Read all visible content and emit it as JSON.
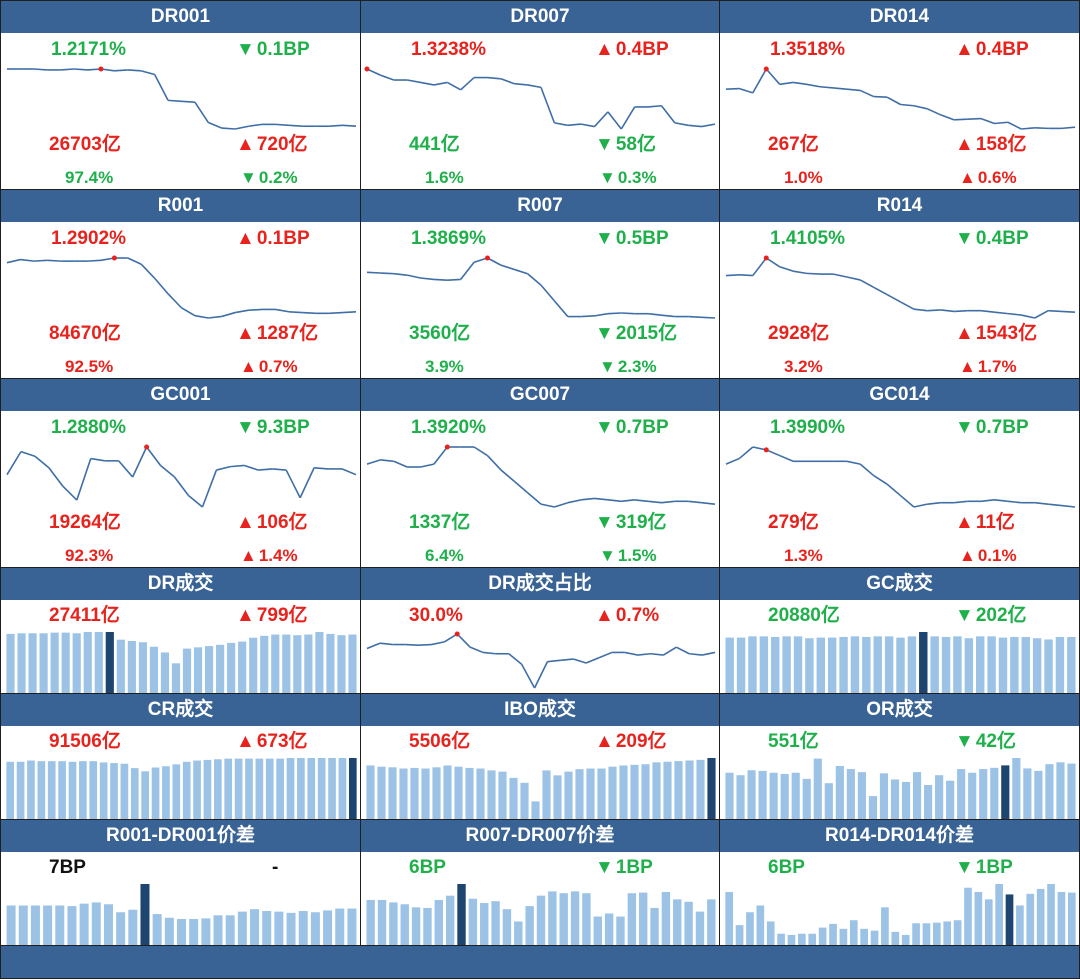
{
  "colors": {
    "up": "#e8231d",
    "down": "#1fb04b",
    "header_bg": "#3a6395",
    "line": "#3f6ea7",
    "bar": "#9cc3e6",
    "bar_hl": "#1d4570"
  },
  "panels": [
    {
      "id": "dr001",
      "title": "DR001",
      "type": "line",
      "rate": "1.2171%",
      "rate_dir": "down",
      "rate_chg": "0.1BP",
      "rate_chg_dir": "down",
      "vol": "26703亿",
      "vol_dir": "up",
      "vol_chg": "720亿",
      "vol_chg_dir": "up",
      "share": "97.4%",
      "share_dir": "down",
      "share_chg": "0.2%",
      "share_chg_dir": "down",
      "chart_data": {
        "type": "line",
        "values": [
          13,
          13,
          13,
          12.9,
          12.9,
          13,
          12.9,
          13,
          12.8,
          12.9,
          12.8,
          12.4,
          9.6,
          9.5,
          9.4,
          7.2,
          6.6,
          6.5,
          6.8,
          7.0,
          7.0,
          6.9,
          6.8,
          6.8,
          6.8,
          6.9,
          6.8
        ],
        "highlight": 7
      }
    },
    {
      "id": "dr007",
      "title": "DR007",
      "type": "line",
      "rate": "1.3238%",
      "rate_dir": "up",
      "rate_chg": "0.4BP",
      "rate_chg_dir": "up",
      "vol": "441亿",
      "vol_dir": "down",
      "vol_chg": "58亿",
      "vol_chg_dir": "down",
      "share": "1.6%",
      "share_dir": "down",
      "share_chg": "0.3%",
      "share_chg_dir": "down",
      "chart_data": {
        "type": "line",
        "values": [
          13.8,
          12.8,
          12,
          12,
          11.6,
          11.2,
          11.6,
          10.4,
          12.4,
          12.4,
          12.2,
          11.4,
          11.2,
          10.8,
          5,
          4.6,
          4.8,
          4.4,
          6.8,
          4,
          7.6,
          7.6,
          7.8,
          5,
          4.6,
          4.4,
          4.8
        ],
        "highlight": 0
      }
    },
    {
      "id": "dr014",
      "title": "DR014",
      "type": "line",
      "rate": "1.3518%",
      "rate_dir": "up",
      "rate_chg": "0.4BP",
      "rate_chg_dir": "up",
      "vol": "267亿",
      "vol_dir": "up",
      "vol_chg": "158亿",
      "vol_chg_dir": "up",
      "share": "1.0%",
      "share_dir": "up",
      "share_chg": "0.6%",
      "share_chg_dir": "up",
      "chart_data": {
        "type": "line",
        "values": [
          11.6,
          11.7,
          11,
          14.9,
          12.4,
          12.7,
          12.4,
          12,
          11.8,
          11.6,
          11.4,
          10.4,
          10.3,
          9.1,
          8.9,
          8.4,
          7.4,
          6.6,
          6.7,
          6.8,
          6,
          6.2,
          5.1,
          5.3,
          5.2,
          5.2,
          5.4
        ],
        "highlight": 3
      }
    },
    {
      "id": "r001",
      "title": "R001",
      "type": "line",
      "rate": "1.2902%",
      "rate_dir": "up",
      "rate_chg": "0.1BP",
      "rate_chg_dir": "up",
      "vol": "84670亿",
      "vol_dir": "up",
      "vol_chg": "1287亿",
      "vol_chg_dir": "up",
      "share": "92.5%",
      "share_dir": "up",
      "share_chg": "0.7%",
      "share_chg_dir": "up",
      "chart_data": {
        "type": "line",
        "values": [
          13.2,
          13.6,
          13.4,
          13.5,
          13.4,
          13.4,
          13.4,
          13.5,
          13.8,
          13.8,
          13,
          11.2,
          9.2,
          7.4,
          6.4,
          6.1,
          6.3,
          6.8,
          7.1,
          7.2,
          7.2,
          6.9,
          6.8,
          6.7,
          6.7,
          6.8,
          6.9
        ],
        "highlight": 8
      }
    },
    {
      "id": "r007",
      "title": "R007",
      "type": "line",
      "rate": "1.3869%",
      "rate_dir": "down",
      "rate_chg": "0.5BP",
      "rate_chg_dir": "down",
      "vol": "3560亿",
      "vol_dir": "down",
      "vol_chg": "2015亿",
      "vol_chg_dir": "down",
      "share": "3.9%",
      "share_dir": "down",
      "share_chg": "2.3%",
      "share_chg_dir": "down",
      "chart_data": {
        "type": "line",
        "values": [
          12.4,
          12.3,
          12.2,
          12,
          11.6,
          11.4,
          11.3,
          11.4,
          13.8,
          14.4,
          13.4,
          12.8,
          12.2,
          10.6,
          8.4,
          6.2,
          6.2,
          6.3,
          6.6,
          6.7,
          6.6,
          6.6,
          6.4,
          6.2,
          6.2,
          6.1,
          6.0
        ],
        "highlight": 9
      }
    },
    {
      "id": "r014",
      "title": "R014",
      "type": "line",
      "rate": "1.4105%",
      "rate_dir": "down",
      "rate_chg": "0.4BP",
      "rate_chg_dir": "down",
      "vol": "2928亿",
      "vol_dir": "up",
      "vol_chg": "1543亿",
      "vol_chg_dir": "up",
      "share": "3.2%",
      "share_dir": "up",
      "share_chg": "1.7%",
      "share_chg_dir": "up",
      "chart_data": {
        "type": "line",
        "values": [
          12.2,
          12.3,
          12.2,
          14.6,
          13.4,
          12.8,
          12.5,
          12.4,
          12.4,
          12,
          11.6,
          10.6,
          9.6,
          8.6,
          7.6,
          7.4,
          7.5,
          7.3,
          7.4,
          7.4,
          7.2,
          7.0,
          6.8,
          6.4,
          7.4,
          7.3,
          7.2
        ],
        "highlight": 3
      }
    },
    {
      "id": "gc001",
      "title": "GC001",
      "type": "line",
      "rate": "1.2880%",
      "rate_dir": "down",
      "rate_chg": "9.3BP",
      "rate_chg_dir": "down",
      "vol": "19264亿",
      "vol_dir": "up",
      "vol_chg": "106亿",
      "vol_chg_dir": "up",
      "share": "92.3%",
      "share_dir": "up",
      "share_chg": "1.4%",
      "share_chg_dir": "up",
      "chart_data": {
        "type": "line",
        "values": [
          10.4,
          12.4,
          12,
          11,
          9.4,
          8.2,
          11.8,
          11.6,
          11.6,
          10.2,
          12.8,
          11.2,
          10.2,
          8.6,
          7.6,
          10.8,
          11.1,
          11.2,
          10.8,
          10.9,
          10.8,
          8.4,
          11,
          10.9,
          10.9,
          10.4
        ],
        "highlight": 10
      }
    },
    {
      "id": "gc007",
      "title": "GC007",
      "type": "line",
      "rate": "1.3920%",
      "rate_dir": "down",
      "rate_chg": "0.7BP",
      "rate_chg_dir": "down",
      "vol": "1337亿",
      "vol_dir": "down",
      "vol_chg": "319亿",
      "vol_chg_dir": "down",
      "share": "6.4%",
      "share_dir": "down",
      "share_chg": "1.5%",
      "share_chg_dir": "down",
      "chart_data": {
        "type": "line",
        "values": [
          12.6,
          12.9,
          12.8,
          12.4,
          12.4,
          12.6,
          13.8,
          13.8,
          13.8,
          13.2,
          12.2,
          11.4,
          10.6,
          9.8,
          9.6,
          9.9,
          10.1,
          10.2,
          10.1,
          10.0,
          10.1,
          10.0,
          9.9,
          10.0,
          10.0,
          9.9,
          9.8
        ],
        "highlight": 6
      }
    },
    {
      "id": "gc014",
      "title": "GC014",
      "type": "line",
      "rate": "1.3990%",
      "rate_dir": "down",
      "rate_chg": "0.7BP",
      "rate_chg_dir": "down",
      "vol": "279亿",
      "vol_dir": "up",
      "vol_chg": "11亿",
      "vol_chg_dir": "up",
      "share": "1.3%",
      "share_dir": "up",
      "share_chg": "0.1%",
      "share_chg_dir": "up",
      "chart_data": {
        "type": "line",
        "values": [
          12.6,
          13,
          13.8,
          13.6,
          13.2,
          12.8,
          12.8,
          12.8,
          12.8,
          12.8,
          12.6,
          11.8,
          11.2,
          10.4,
          9.6,
          9.8,
          9.9,
          9.9,
          10,
          10,
          10.1,
          10.0,
          9.9,
          9.9,
          9.8,
          9.7,
          9.6
        ],
        "highlight": 3
      }
    },
    {
      "id": "dr-volume",
      "title": "DR成交",
      "type": "bar",
      "val": "27411亿",
      "val_dir": "up",
      "chg": "799亿",
      "chg_dir": "up",
      "chart_data": {
        "type": "bar",
        "values": [
          9.4,
          9.5,
          9.5,
          9.5,
          9.6,
          9.6,
          9.5,
          9.7,
          9.7,
          9.7,
          8.5,
          8.3,
          8.1,
          7.4,
          6.5,
          4.8,
          7.1,
          7.3,
          7.5,
          7.7,
          8.0,
          8.2,
          8.8,
          9.1,
          9.3,
          9.3,
          9.2,
          9.3,
          9.7,
          9.4,
          9.2,
          9.3
        ],
        "highlight": 9
      }
    },
    {
      "id": "dr-share",
      "title": "DR成交占比",
      "type": "line",
      "val": "30.0%",
      "val_dir": "up",
      "chg": "0.7%",
      "chg_dir": "up",
      "chart_data": {
        "type": "line",
        "values": [
          11.6,
          12.4,
          12.2,
          12.2,
          12.1,
          12.2,
          12.6,
          13.8,
          11.8,
          11.0,
          10.8,
          10.8,
          9.2,
          5.6,
          9.6,
          9.8,
          10,
          9.4,
          10.2,
          11,
          11,
          10.6,
          10.8,
          10.6,
          11.8,
          10.8,
          10.6,
          11
        ],
        "highlight": 7
      }
    },
    {
      "id": "gc-volume",
      "title": "GC成交",
      "type": "bar",
      "val": "20880亿",
      "val_dir": "down",
      "chg": "202亿",
      "chg_dir": "down",
      "chart_data": {
        "type": "bar",
        "values": [
          9.1,
          9.1,
          9.3,
          9.3,
          9.2,
          9.3,
          9.3,
          9.0,
          9.1,
          9.1,
          9.2,
          9.3,
          9.2,
          9.3,
          9.3,
          9.1,
          9.3,
          10,
          9.3,
          9.2,
          9.3,
          9.0,
          9.3,
          9.3,
          9.1,
          9.2,
          9.2,
          9.0,
          8.8,
          9.2,
          9.2
        ],
        "highlight": 17
      }
    },
    {
      "id": "cr-volume",
      "title": "CR成交",
      "type": "bar",
      "val": "91506亿",
      "val_dir": "up",
      "chg": "673亿",
      "chg_dir": "up",
      "chart_data": {
        "type": "bar",
        "values": [
          9.2,
          9.2,
          9.4,
          9.3,
          9.3,
          9.3,
          9.2,
          9.3,
          9.3,
          9.1,
          9.0,
          8.9,
          8.2,
          7.7,
          8.3,
          8.5,
          8.8,
          9.2,
          9.4,
          9.5,
          9.6,
          9.7,
          9.7,
          9.7,
          9.7,
          9.7,
          9.7,
          9.8,
          9.8,
          9.8,
          9.8,
          9.8,
          9.8,
          9.8
        ],
        "highlight": 33
      }
    },
    {
      "id": "ibo-volume",
      "title": "IBO成交",
      "type": "bar",
      "val": "5506亿",
      "val_dir": "up",
      "chg": "209亿",
      "chg_dir": "up",
      "chart_data": {
        "type": "bar",
        "values": [
          8.8,
          8.6,
          8.5,
          8.3,
          8.4,
          8.3,
          8.5,
          8.8,
          8.6,
          8.4,
          8.3,
          8.0,
          7.8,
          6.8,
          6.0,
          3.0,
          8.0,
          7.2,
          7.8,
          8.2,
          8.3,
          8.3,
          8.6,
          8.8,
          8.9,
          9.0,
          9.3,
          9.4,
          9.5,
          9.6,
          9.7,
          10.0
        ],
        "highlight": 31
      }
    },
    {
      "id": "or-volume",
      "title": "OR成交",
      "type": "bar",
      "val": "551亿",
      "val_dir": "down",
      "chg": "42亿",
      "chg_dir": "down",
      "chart_data": {
        "type": "bar",
        "values": [
          7.7,
          7.3,
          8.1,
          8.0,
          7.7,
          7.5,
          7.7,
          6.7,
          10.0,
          6.0,
          8.8,
          8.3,
          7.8,
          3.9,
          7.6,
          6.6,
          6.2,
          7.8,
          5.7,
          7.3,
          6.4,
          8.3,
          7.7,
          8.3,
          8.5,
          8.9,
          10.1,
          8.4,
          8.0,
          9.1,
          9.4,
          9.2
        ],
        "highlight": 25
      }
    },
    {
      "id": "r001-dr001-spread",
      "title": "R001-DR001价差",
      "type": "bar",
      "val": "7BP",
      "val_dir": "neutral",
      "chg": "-",
      "chg_dir": "neutral",
      "chart_data": {
        "type": "bar",
        "values": [
          6.6,
          6.6,
          6.6,
          6.6,
          6.6,
          6.5,
          6.9,
          7.1,
          6.8,
          5.5,
          5.9,
          10.1,
          5.2,
          4.6,
          4.4,
          4.4,
          4.5,
          5.0,
          5.0,
          5.6,
          6.0,
          5.7,
          5.6,
          5.4,
          5.7,
          5.5,
          5.8,
          6.1,
          6.1
        ],
        "highlight": 11
      }
    },
    {
      "id": "r007-dr007-spread",
      "title": "R007-DR007价差",
      "type": "bar",
      "val": "6BP",
      "val_dir": "down",
      "chg": "1BP",
      "chg_dir": "down",
      "chart_data": {
        "type": "bar",
        "values": [
          7.5,
          7.5,
          7.1,
          6.8,
          6.3,
          6.2,
          7.5,
          8.2,
          10.1,
          7.7,
          7.0,
          7.3,
          6.0,
          4.0,
          6.5,
          8.2,
          8.9,
          8.6,
          8.9,
          8.6,
          4.8,
          5.3,
          4.8,
          8.6,
          8.7,
          6.2,
          8.8,
          7.6,
          7.2,
          5.6,
          7.6
        ],
        "highlight": 8
      }
    },
    {
      "id": "r014-dr014-spread",
      "title": "R014-DR014价差",
      "type": "bar",
      "val": "6BP",
      "val_dir": "down",
      "chg": "1BP",
      "chg_dir": "down",
      "chart_data": {
        "type": "bar",
        "values": [
          8.8,
          3.4,
          5.5,
          6.6,
          4.0,
          2.0,
          1.8,
          2.0,
          2.0,
          3.0,
          3.6,
          2.8,
          4.2,
          2.8,
          2.5,
          6.3,
          2.3,
          1.8,
          3.7,
          3.7,
          3.8,
          4.0,
          4.2,
          9.5,
          8.8,
          7.6,
          10.1,
          8.4,
          6.6,
          8.5,
          9.3,
          10.1,
          8.8,
          8.7
        ],
        "highlight": 27
      }
    }
  ]
}
